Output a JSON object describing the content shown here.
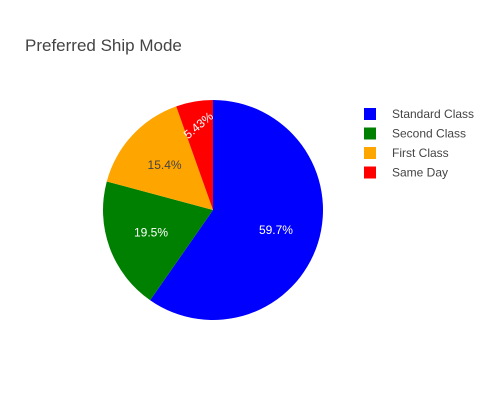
{
  "chart_data": {
    "type": "pie",
    "title": "Preferred Ship Mode",
    "categories": [
      "Standard Class",
      "Second Class",
      "First Class",
      "Same Day"
    ],
    "values": [
      59.7,
      19.5,
      15.4,
      5.43
    ],
    "labels": [
      "59.7%",
      "19.5%",
      "15.4%",
      "5.43%"
    ],
    "colors": [
      "#0000ff",
      "#008000",
      "#ffa500",
      "#ff0000"
    ],
    "label_colors": [
      "#ffffff",
      "#ffffff",
      "#444444",
      "#ffffff"
    ],
    "legend": {
      "position": "top-right",
      "entries": [
        "Standard Class",
        "Second Class",
        "First Class",
        "Same Day"
      ]
    }
  }
}
